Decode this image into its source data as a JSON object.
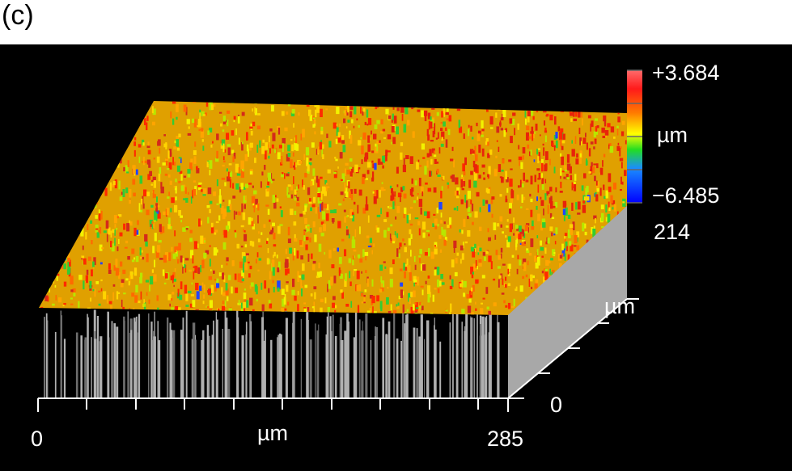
{
  "panel_label": "(c)",
  "colorbar": {
    "max_label": "+3.684",
    "min_label": "−6.485",
    "unit_label": "µm",
    "colors": [
      "#ff6b6b",
      "#ff1a1a",
      "#ff7a00",
      "#ffff00",
      "#22dd22",
      "#1a8cff",
      "#0000ff"
    ]
  },
  "x_axis": {
    "start_label": "0",
    "end_label": "285",
    "unit_label": "µm"
  },
  "y_axis": {
    "start_label": "0",
    "end_label": "214",
    "unit_label": "µm"
  },
  "colors": {
    "background": "#000000",
    "side_wall": "#a8a8a8",
    "surface_palette": [
      "#ff2a00",
      "#ff6a00",
      "#ffa500",
      "#ffd400",
      "#f2f200",
      "#b8e600",
      "#33cc33",
      "#d42a1a"
    ]
  }
}
